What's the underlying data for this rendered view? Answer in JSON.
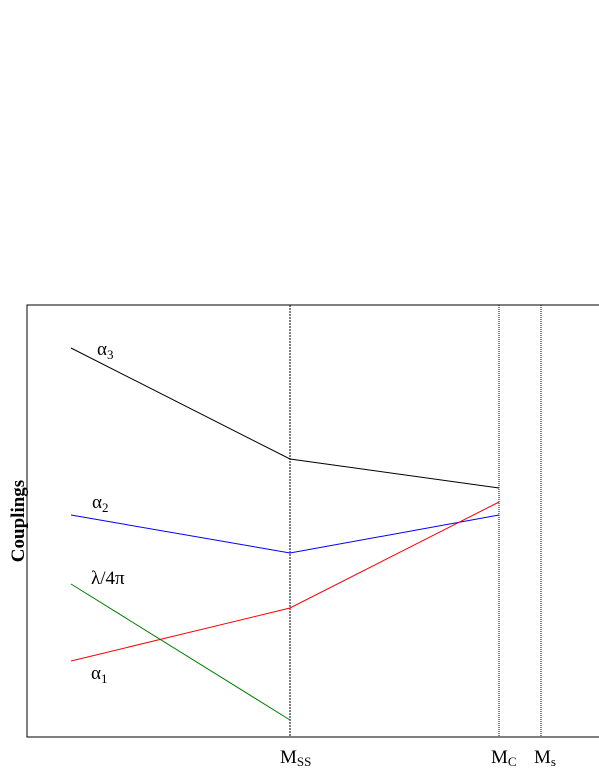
{
  "axis_label": "Couplings",
  "x_labels": [
    {
      "base": "M",
      "sub": "SS"
    },
    {
      "base": "M",
      "sub": "C"
    },
    {
      "base": "M",
      "sub": "s"
    }
  ],
  "curve_labels": [
    {
      "base": "α",
      "sub": "3"
    },
    {
      "base": "α",
      "sub": "2"
    },
    {
      "base": "λ/4π",
      "sub": ""
    },
    {
      "base": "α",
      "sub": "1"
    }
  ]
}
